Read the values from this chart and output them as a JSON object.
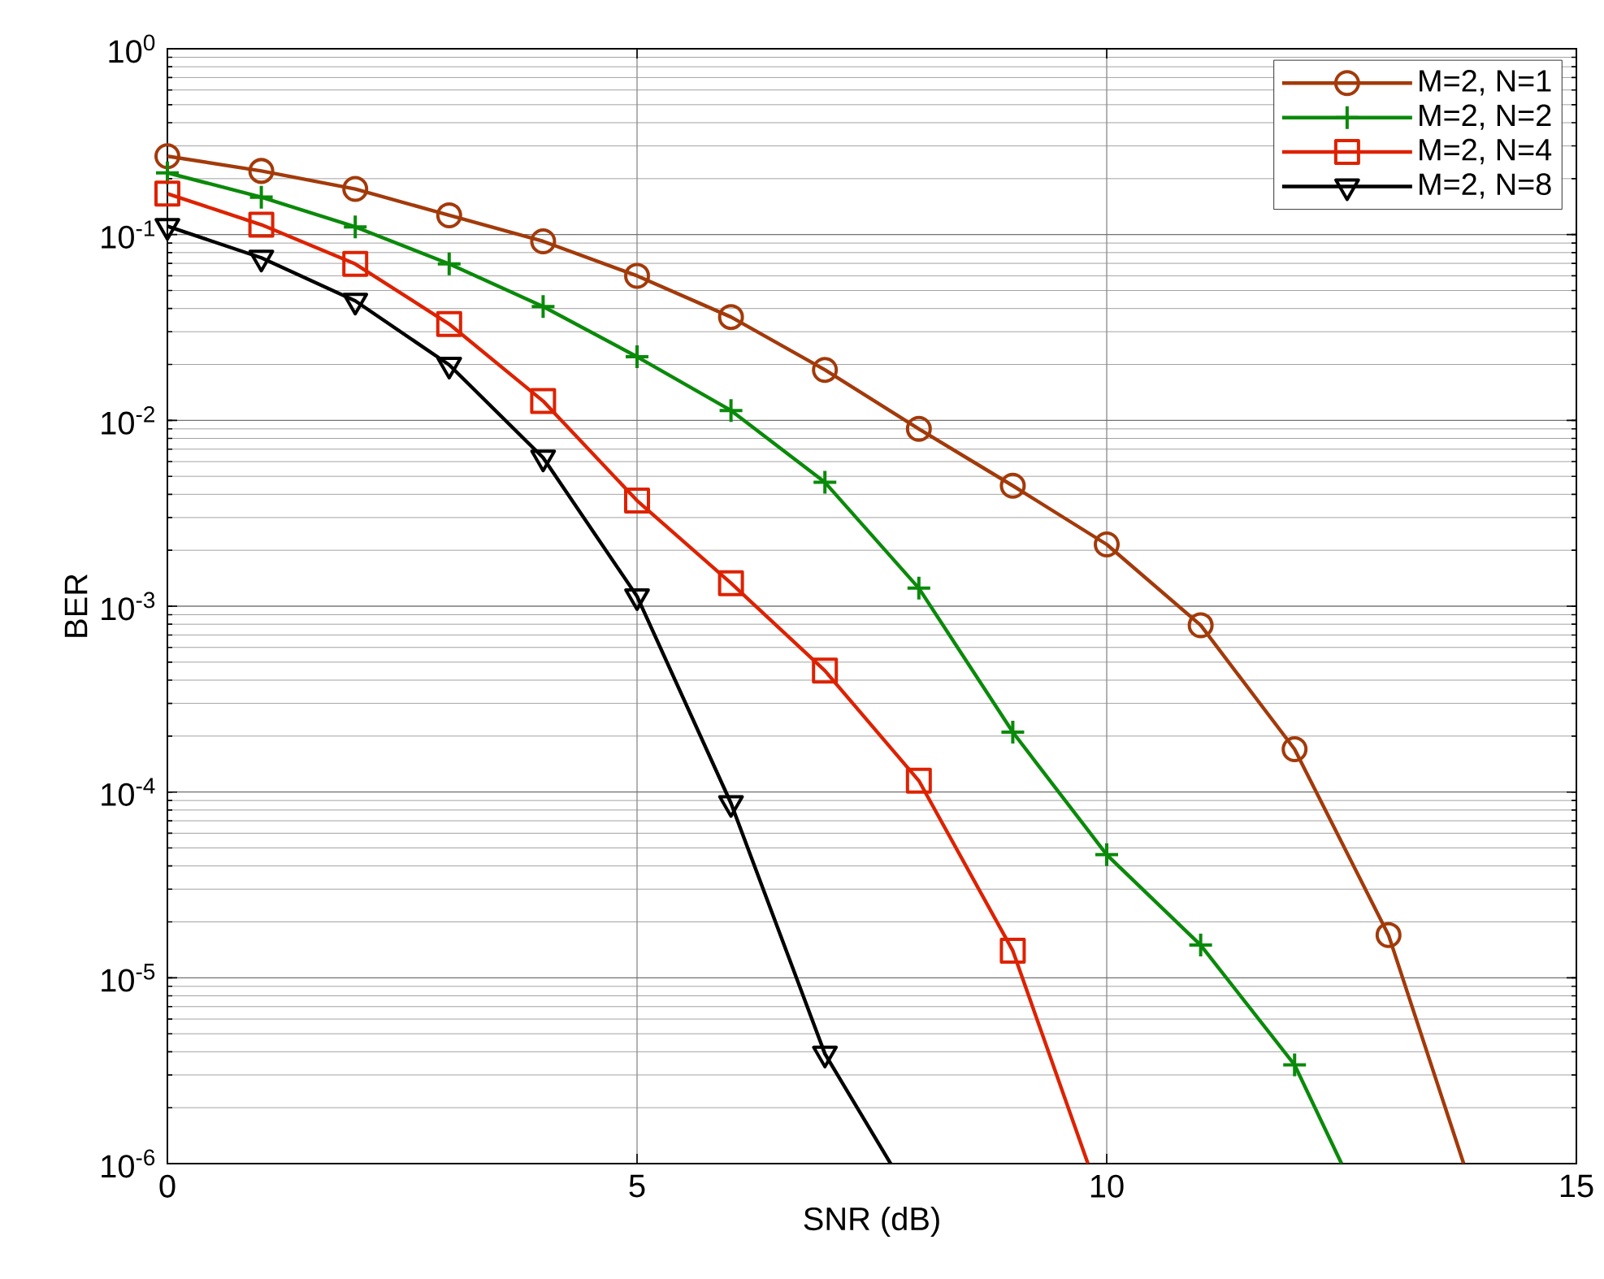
{
  "chart_data": {
    "type": "line",
    "xlabel": "SNR (dB)",
    "ylabel": "BER",
    "log": "y",
    "grid": true,
    "legend": "top right",
    "line_style": "solid",
    "xlim": [
      0,
      15
    ],
    "xticks": [
      0,
      5,
      10,
      15
    ],
    "ylim": [
      1e-06,
      1
    ],
    "yticks": [
      {
        "value": 1e-06,
        "label": "10$^{-6}$"
      },
      {
        "value": 1e-05,
        "label": "10$^{-5}$"
      },
      {
        "value": 0.0001,
        "label": "10$^{-4}$"
      },
      {
        "value": 0.001,
        "label": "10$^{-3}$"
      },
      {
        "value": 0.01,
        "label": "10$^{-2}$"
      },
      {
        "value": 0.1,
        "label": "10$^{-1}$"
      },
      {
        "value": 1,
        "label": "10$^{0}$"
      }
    ],
    "series": [
      {
        "name": "M=2, N=1",
        "color": "#a33a0a",
        "marker": "circle",
        "x": [
          0,
          1,
          2,
          3,
          4,
          5,
          6,
          7,
          8,
          9,
          10,
          11,
          12,
          13,
          13.8
        ],
        "values": [
          0.264,
          0.22,
          0.176,
          0.127,
          0.092,
          0.06,
          0.036,
          0.0187,
          0.009,
          0.00445,
          0.00215,
          0.00079,
          0.00017,
          1.7e-05,
          1e-06
        ]
      },
      {
        "name": "M=2, N=2",
        "color": "#0a8a0a",
        "marker": "cross",
        "x": [
          0,
          1,
          2,
          3,
          4,
          5,
          6,
          7,
          8,
          9,
          10,
          11,
          12,
          12.5
        ],
        "values": [
          0.215,
          0.159,
          0.11,
          0.0695,
          0.041,
          0.022,
          0.0113,
          0.00464,
          0.00125,
          0.00021,
          4.6e-05,
          1.5e-05,
          3.4e-06,
          1e-06
        ]
      },
      {
        "name": "M=2, N=4",
        "color": "#dd2200",
        "marker": "square",
        "x": [
          0,
          1,
          2,
          3,
          4,
          5,
          6,
          7,
          8,
          9,
          9.8
        ],
        "values": [
          0.166,
          0.113,
          0.0695,
          0.033,
          0.0127,
          0.0037,
          0.00133,
          0.00045,
          0.000115,
          1.4e-05,
          1e-06
        ]
      },
      {
        "name": "M=2, N=8",
        "color": "#000000",
        "marker": "triangle",
        "x": [
          0,
          1,
          2,
          3,
          4,
          5,
          6,
          7,
          7.7
        ],
        "values": [
          0.111,
          0.075,
          0.044,
          0.0199,
          0.0063,
          0.00113,
          8.7e-05,
          3.9e-06,
          1e-06
        ]
      }
    ]
  }
}
